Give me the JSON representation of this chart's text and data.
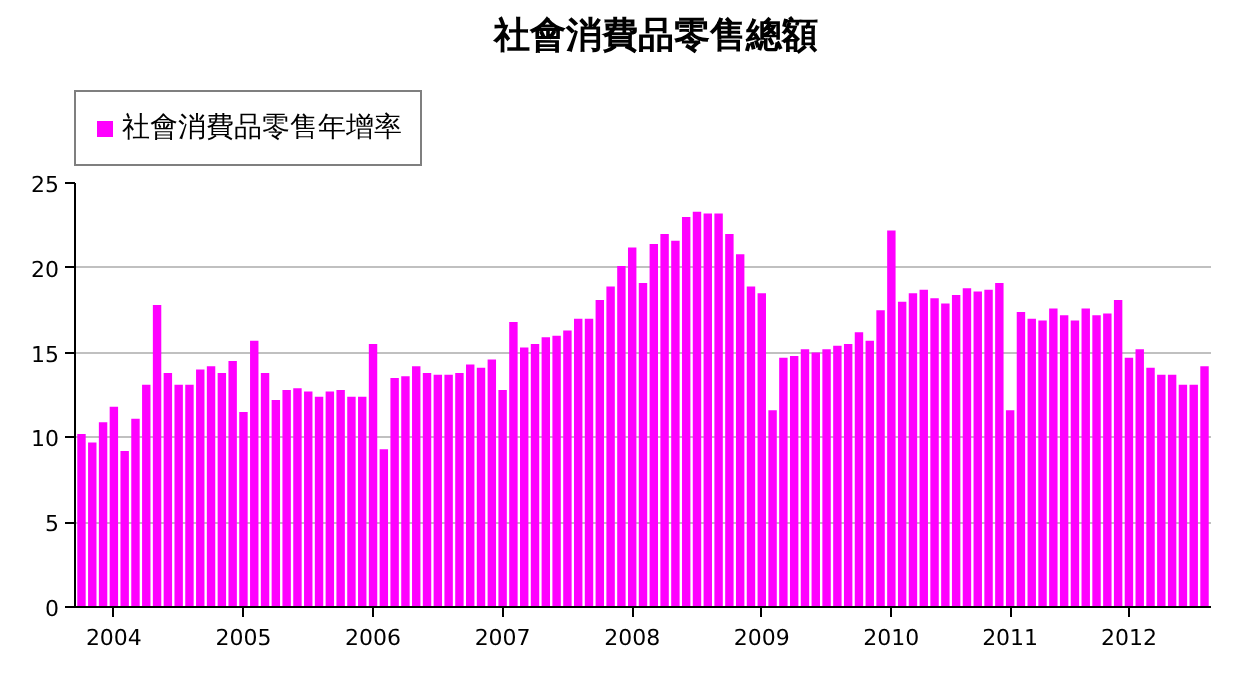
{
  "chart_data": {
    "type": "bar",
    "title": "社會消費品零售總額",
    "categories": [
      null,
      null,
      null,
      "2004",
      null,
      null,
      null,
      null,
      null,
      null,
      null,
      null,
      null,
      null,
      null,
      "2005",
      null,
      null,
      null,
      null,
      null,
      null,
      null,
      null,
      null,
      null,
      null,
      "2006",
      null,
      null,
      null,
      null,
      null,
      null,
      null,
      null,
      null,
      null,
      null,
      "2007",
      null,
      null,
      null,
      null,
      null,
      null,
      null,
      null,
      null,
      null,
      null,
      "2008",
      null,
      null,
      null,
      null,
      null,
      null,
      null,
      null,
      null,
      null,
      null,
      "2009",
      null,
      null,
      null,
      null,
      null,
      null,
      null,
      null,
      null,
      null,
      null,
      "2010",
      null,
      null,
      null,
      null,
      null,
      null,
      null,
      null,
      null,
      null,
      "2011",
      null,
      null,
      null,
      null,
      null,
      null,
      null,
      null,
      null,
      null,
      "2012",
      null,
      null,
      null,
      null,
      null,
      null,
      null
    ],
    "series": [
      {
        "name": "社會消費品零售年增率",
        "color": "#ff00ff",
        "values": [
          10.2,
          9.7,
          10.9,
          11.8,
          9.2,
          11.1,
          13.1,
          17.8,
          13.8,
          13.1,
          13.1,
          14.0,
          14.2,
          13.8,
          14.5,
          11.5,
          15.7,
          13.8,
          12.2,
          12.8,
          12.9,
          12.7,
          12.4,
          12.7,
          12.8,
          12.4,
          12.4,
          15.5,
          9.3,
          13.5,
          13.6,
          14.2,
          13.8,
          13.7,
          13.7,
          13.8,
          14.3,
          14.1,
          14.6,
          12.8,
          16.8,
          15.3,
          15.5,
          15.9,
          16.0,
          16.3,
          17.0,
          17.0,
          18.1,
          18.9,
          20.1,
          21.2,
          19.1,
          21.4,
          22.0,
          21.6,
          23.0,
          23.3,
          23.2,
          23.2,
          22.0,
          20.8,
          18.9,
          18.5,
          11.6,
          14.7,
          14.8,
          15.2,
          15.0,
          15.2,
          15.4,
          15.5,
          16.2,
          15.7,
          17.5,
          22.2,
          18.0,
          18.5,
          18.7,
          18.2,
          17.9,
          18.4,
          18.8,
          18.6,
          18.7,
          19.1,
          11.6,
          17.4,
          17.0,
          16.9,
          17.6,
          17.2,
          16.9,
          17.6,
          17.2,
          17.3,
          18.1,
          14.7,
          15.2,
          14.1,
          13.7,
          13.7,
          13.1,
          13.1,
          14.2
        ]
      }
    ],
    "ylim": [
      0,
      25
    ],
    "yticks": [
      0,
      5,
      10,
      15,
      20,
      25
    ],
    "grid": "y",
    "legend": "top left"
  }
}
